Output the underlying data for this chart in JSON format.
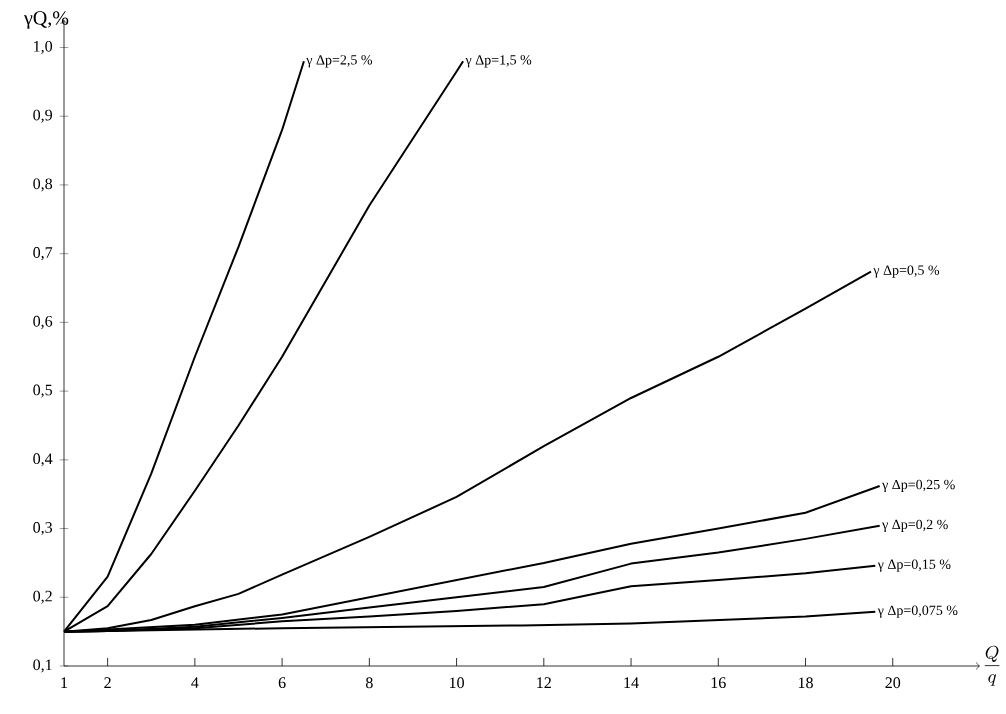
{
  "chart_data": {
    "type": "line",
    "ylabel": "γQ,%",
    "xlabel": "\\frac{Q}{q}",
    "xlim": [
      1,
      22
    ],
    "ylim": [
      0.1,
      1.04
    ],
    "xticks": [
      1,
      2,
      4,
      6,
      8,
      10,
      12,
      14,
      16,
      18,
      20
    ],
    "yticks": [
      {
        "value": 0.1,
        "label": "0,1"
      },
      {
        "value": 0.2,
        "label": "0,2"
      },
      {
        "value": 0.3,
        "label": "0,3"
      },
      {
        "value": 0.4,
        "label": "0,4"
      },
      {
        "value": 0.5,
        "label": "0,5"
      },
      {
        "value": 0.6,
        "label": "0,6"
      },
      {
        "value": 0.7,
        "label": "0,7"
      },
      {
        "value": 0.8,
        "label": "0,8"
      },
      {
        "value": 0.9,
        "label": "0,9"
      },
      {
        "value": 1.0,
        "label": "1,0"
      }
    ],
    "grid": false,
    "legend": false,
    "marker": "none",
    "line_style": "solid",
    "series": [
      {
        "name": "γ Δp=2,5 %",
        "color": "#000000",
        "x": [
          1,
          2,
          3,
          4,
          5,
          6,
          6.5
        ],
        "values": [
          0.15,
          0.23,
          0.38,
          0.55,
          0.71,
          0.88,
          0.98
        ]
      },
      {
        "name": "γ Δp=1,5 %",
        "color": "#000000",
        "x": [
          1,
          2,
          3,
          4,
          5,
          6,
          8,
          10,
          10.15
        ],
        "values": [
          0.15,
          0.187,
          0.263,
          0.355,
          0.45,
          0.55,
          0.77,
          0.965,
          0.98
        ]
      },
      {
        "name": "γ Δp=0,5 %",
        "color": "#000000",
        "x": [
          1,
          2,
          3,
          4,
          5,
          6,
          8,
          10,
          12,
          14,
          16,
          18,
          19.5
        ],
        "values": [
          0.15,
          0.155,
          0.167,
          0.187,
          0.205,
          0.233,
          0.288,
          0.346,
          0.42,
          0.49,
          0.55,
          0.62,
          0.674
        ]
      },
      {
        "name": "γ Δp=0,25 %",
        "color": "#000000",
        "x": [
          1,
          2,
          4,
          6,
          8,
          10,
          12,
          14,
          16,
          18,
          19.7
        ],
        "values": [
          0.15,
          0.153,
          0.16,
          0.175,
          0.2,
          0.225,
          0.25,
          0.278,
          0.3,
          0.323,
          0.362
        ]
      },
      {
        "name": "γ Δp=0,2 %",
        "color": "#000000",
        "x": [
          1,
          2,
          4,
          6,
          8,
          10,
          12,
          14,
          16,
          18,
          19.7
        ],
        "values": [
          0.15,
          0.151,
          0.157,
          0.17,
          0.185,
          0.2,
          0.215,
          0.249,
          0.265,
          0.285,
          0.304
        ]
      },
      {
        "name": "γ Δp=0,15 %",
        "color": "#000000",
        "x": [
          1,
          2,
          4,
          6,
          8,
          10,
          12,
          14,
          16,
          18,
          19.6
        ],
        "values": [
          0.15,
          0.151,
          0.155,
          0.165,
          0.172,
          0.18,
          0.19,
          0.216,
          0.225,
          0.235,
          0.246
        ]
      },
      {
        "name": "γ Δp=0,075 %",
        "color": "#000000",
        "x": [
          1,
          2,
          6,
          11.5,
          14,
          18,
          19.6
        ],
        "values": [
          0.15,
          0.151,
          0.155,
          0.159,
          0.162,
          0.172,
          0.179
        ]
      }
    ]
  }
}
